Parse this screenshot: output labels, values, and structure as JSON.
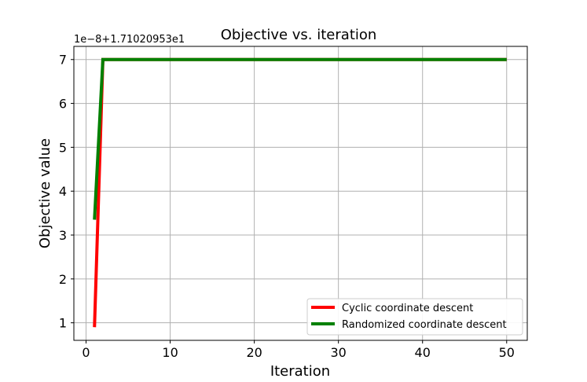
{
  "chart_data": {
    "type": "line",
    "title": "Objective vs. iteration",
    "xlabel": "Iteration",
    "ylabel": "Objective value",
    "offset_label": "1e−8+1.71020953e1",
    "xlim": [
      -1.45,
      52.45
    ],
    "ylim": [
      0.6,
      7.3
    ],
    "x_ticks": [
      0,
      10,
      20,
      30,
      40,
      50
    ],
    "y_ticks": [
      1,
      2,
      3,
      4,
      5,
      6,
      7
    ],
    "grid": true,
    "legend_position": "lower-right",
    "series": [
      {
        "name": "Cyclic coordinate descent",
        "color": "#ff0000",
        "x": [
          1,
          2,
          3,
          4,
          5,
          6,
          7,
          8,
          9,
          10,
          11,
          12,
          13,
          14,
          15,
          16,
          17,
          18,
          19,
          20,
          21,
          22,
          23,
          24,
          25,
          26,
          27,
          28,
          29,
          30,
          31,
          32,
          33,
          34,
          35,
          36,
          37,
          38,
          39,
          40,
          41,
          42,
          43,
          44,
          45,
          46,
          47,
          48,
          49,
          50
        ],
        "y": [
          0.9,
          7.0,
          7.0,
          7.0,
          7.0,
          7.0,
          7.0,
          7.0,
          7.0,
          7.0,
          7.0,
          7.0,
          7.0,
          7.0,
          7.0,
          7.0,
          7.0,
          7.0,
          7.0,
          7.0,
          7.0,
          7.0,
          7.0,
          7.0,
          7.0,
          7.0,
          7.0,
          7.0,
          7.0,
          7.0,
          7.0,
          7.0,
          7.0,
          7.0,
          7.0,
          7.0,
          7.0,
          7.0,
          7.0,
          7.0,
          7.0,
          7.0,
          7.0,
          7.0,
          7.0,
          7.0,
          7.0,
          7.0,
          7.0,
          7.0
        ]
      },
      {
        "name": "Randomized coordinate descent",
        "color": "#008000",
        "x": [
          1,
          2,
          3,
          4,
          5,
          6,
          7,
          8,
          9,
          10,
          11,
          12,
          13,
          14,
          15,
          16,
          17,
          18,
          19,
          20,
          21,
          22,
          23,
          24,
          25,
          26,
          27,
          28,
          29,
          30,
          31,
          32,
          33,
          34,
          35,
          36,
          37,
          38,
          39,
          40,
          41,
          42,
          43,
          44,
          45,
          46,
          47,
          48,
          49,
          50
        ],
        "y": [
          3.35,
          7.0,
          7.0,
          7.0,
          7.0,
          7.0,
          7.0,
          7.0,
          7.0,
          7.0,
          7.0,
          7.0,
          7.0,
          7.0,
          7.0,
          7.0,
          7.0,
          7.0,
          7.0,
          7.0,
          7.0,
          7.0,
          7.0,
          7.0,
          7.0,
          7.0,
          7.0,
          7.0,
          7.0,
          7.0,
          7.0,
          7.0,
          7.0,
          7.0,
          7.0,
          7.0,
          7.0,
          7.0,
          7.0,
          7.0,
          7.0,
          7.0,
          7.0,
          7.0,
          7.0,
          7.0,
          7.0,
          7.0,
          7.0,
          7.0
        ]
      }
    ]
  }
}
